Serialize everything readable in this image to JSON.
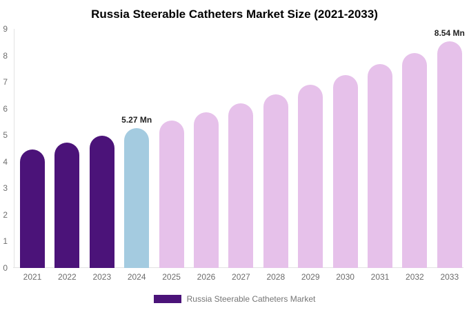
{
  "title": "Russia Steerable Catheters Market Size (2021-2033)",
  "legend": {
    "label": "Russia Steerable Catheters Market",
    "swatch_color": "#4B1379"
  },
  "colors": {
    "historical": "#4B1379",
    "base_year": "#A4CBE0",
    "forecast": "#E6C1EA",
    "axis_line": "#E2E2E2",
    "tick_text": "#6B6B6B",
    "annotation_text": "#222222",
    "legend_text": "#757575",
    "title_text": "#000000",
    "background": "#FFFFFF"
  },
  "chart_data": {
    "type": "bar",
    "title": "Russia Steerable Catheters Market Size (2021-2033)",
    "unit": "Mn",
    "categories": [
      "2021",
      "2022",
      "2023",
      "2024",
      "2025",
      "2026",
      "2027",
      "2028",
      "2029",
      "2030",
      "2031",
      "2032",
      "2033"
    ],
    "values": [
      4.47,
      4.73,
      4.99,
      5.27,
      5.56,
      5.87,
      6.19,
      6.53,
      6.89,
      7.27,
      7.67,
      8.09,
      8.54
    ],
    "bar_roles": [
      "historical",
      "historical",
      "historical",
      "base_year",
      "forecast",
      "forecast",
      "forecast",
      "forecast",
      "forecast",
      "forecast",
      "forecast",
      "forecast",
      "forecast"
    ],
    "annotations": [
      {
        "category": "2024",
        "text": "5.27 Mn"
      },
      {
        "category": "2033",
        "text": "8.54 Mn"
      }
    ],
    "xlabel": "",
    "ylabel": "",
    "ylim": [
      0,
      9
    ],
    "yticks": [
      0,
      1,
      2,
      3,
      4,
      5,
      6,
      7,
      8,
      9
    ],
    "grid": false,
    "legend_position": "bottom"
  }
}
